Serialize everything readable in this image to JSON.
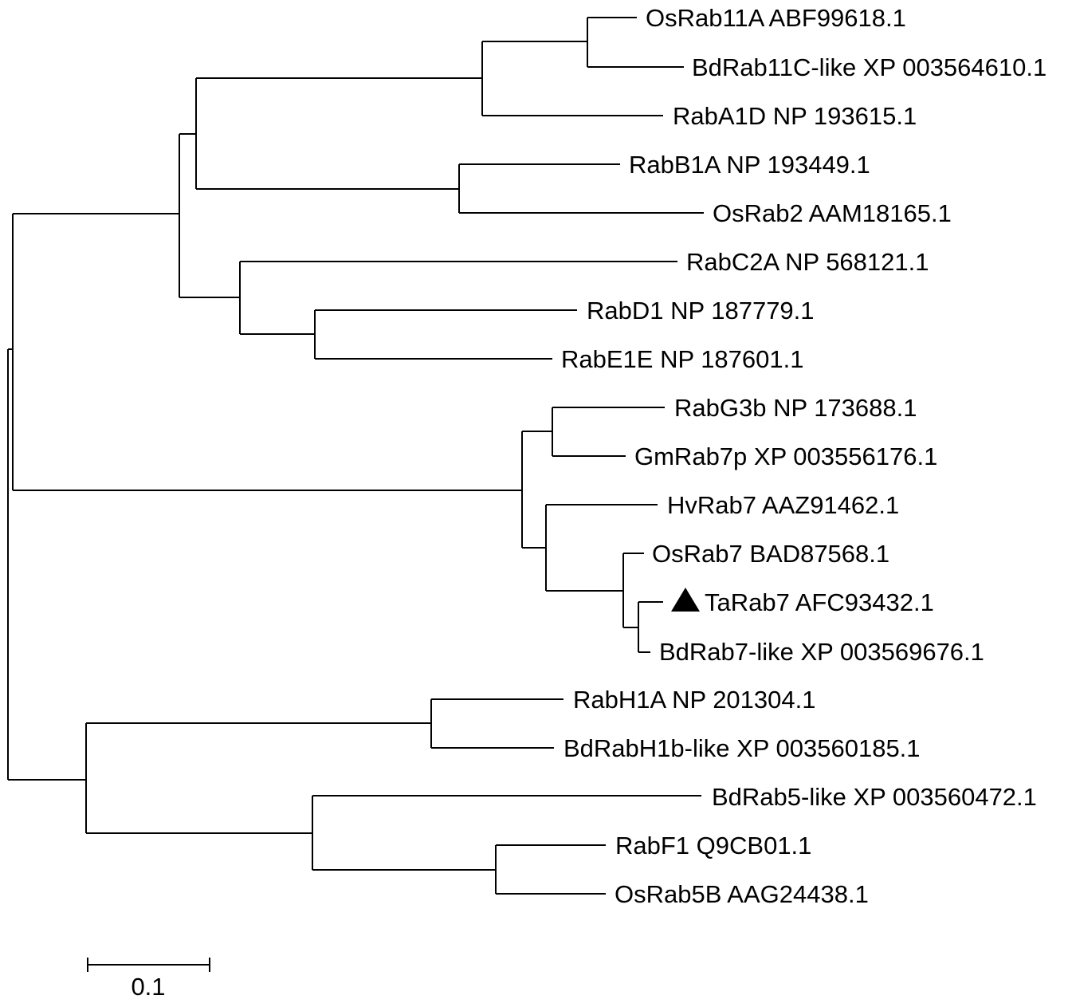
{
  "tree": {
    "marker_color": "#000000",
    "marker_shape": "filled-triangle",
    "leaves": [
      {
        "label": "OsRab11A ABF99618.1"
      },
      {
        "label": "BdRab11C-like XP 003564610.1"
      },
      {
        "label": "RabA1D NP 193615.1"
      },
      {
        "label": "RabB1A NP 193449.1"
      },
      {
        "label": "OsRab2 AAM18165.1"
      },
      {
        "label": "RabC2A NP 568121.1"
      },
      {
        "label": "RabD1 NP 187779.1"
      },
      {
        "label": "RabE1E NP 187601.1"
      },
      {
        "label": "RabG3b NP 173688.1"
      },
      {
        "label": "GmRab7p XP 003556176.1"
      },
      {
        "label": "HvRab7 AAZ91462.1"
      },
      {
        "label": "OsRab7 BAD87568.1"
      },
      {
        "label": "TaRab7 AFC93432.1",
        "highlighted": true
      },
      {
        "label": "BdRab7-like XP 003569676.1"
      },
      {
        "label": "RabH1A NP 201304.1"
      },
      {
        "label": "BdRabH1b-like XP 003560185.1"
      },
      {
        "label": "BdRab5-like XP 003560472.1"
      },
      {
        "label": "RabF1 Q9CB01.1"
      },
      {
        "label": "OsRab5B AAG24438.1"
      }
    ]
  },
  "scale_bar": {
    "value": 0.1,
    "label": "0.1"
  }
}
